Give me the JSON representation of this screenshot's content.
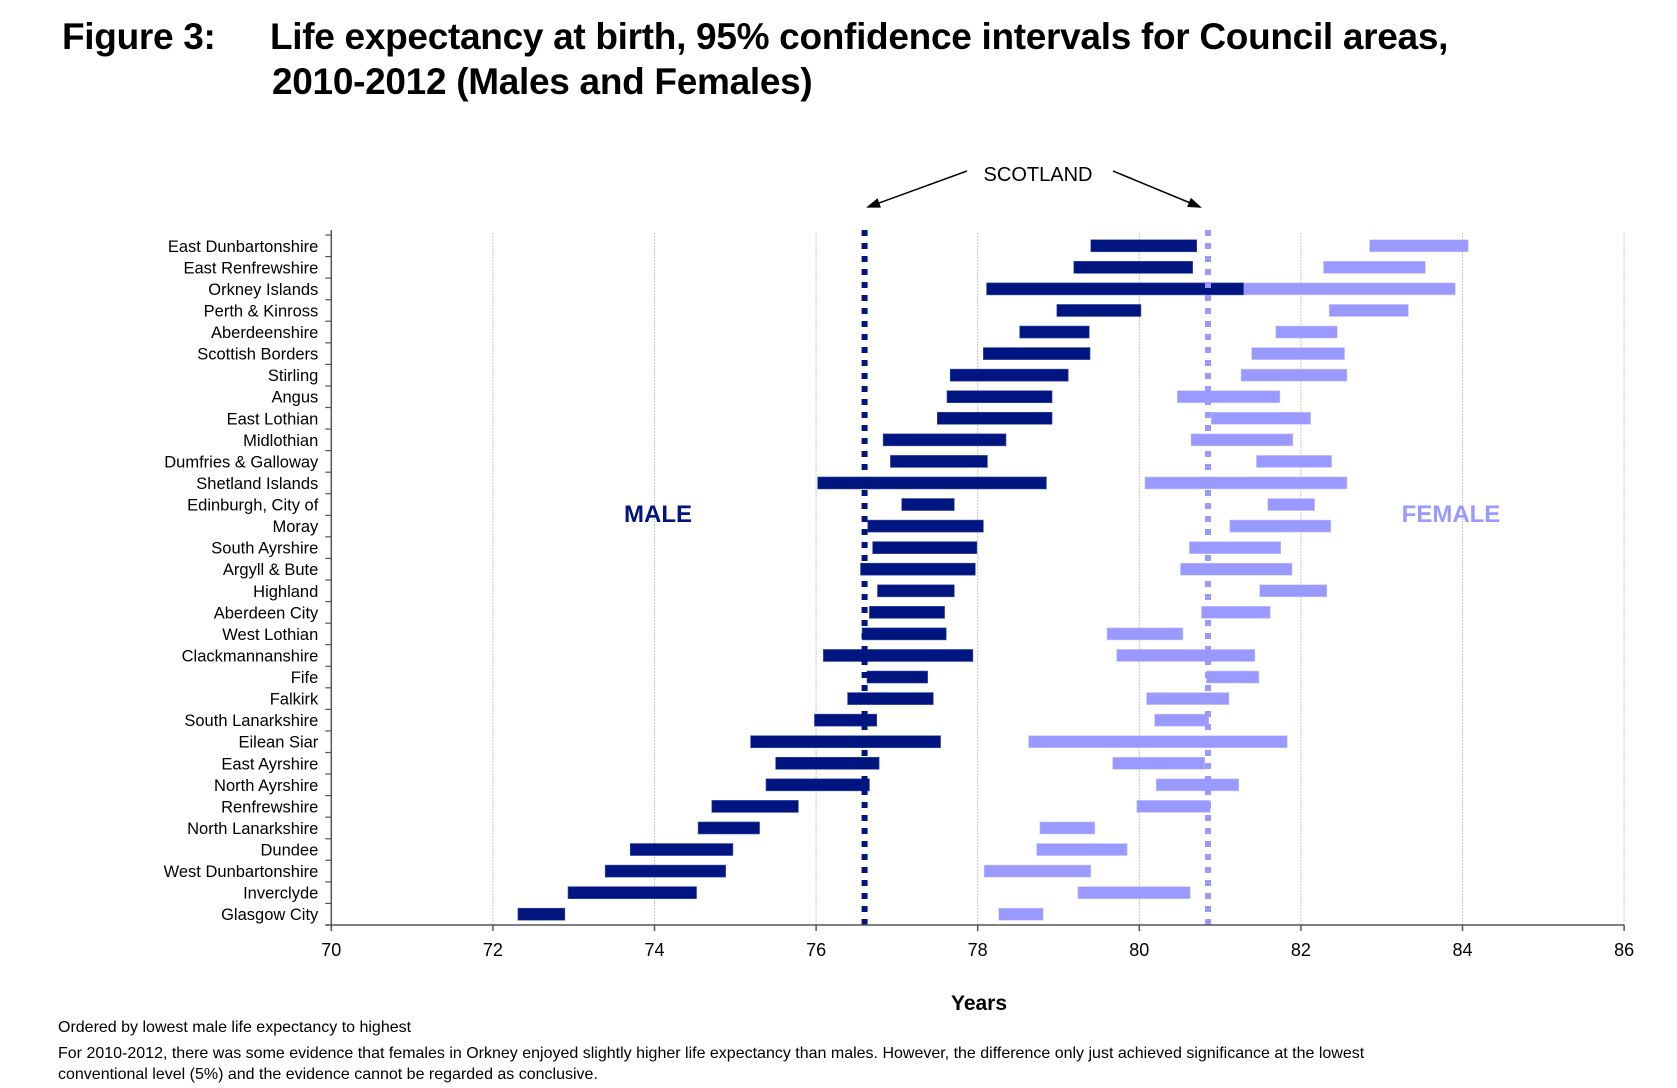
{
  "figure": {
    "prefix": "Figure 3:",
    "title_line1": "Life expectancy at birth, 95% confidence intervals for Council areas,",
    "title_line2": "2010-2012 (Males and Females)"
  },
  "notes": [
    "Ordered by lowest male life expectancy to highest",
    "For 2010-2012, there was some evidence that females in Orkney enjoyed slightly higher life expectancy than males. However, the difference only just achieved significance at the lowest",
    "conventional level (5%) and the evidence cannot be regarded as conclusive."
  ],
  "colors": {
    "male": "#001580",
    "female": "#9999ff",
    "grid": "#c8c8c8",
    "axis": "#555555"
  },
  "chart_data": {
    "type": "bar",
    "subtype": "floating-range-horizontal",
    "title": "Life expectancy at birth, 95% confidence intervals for Council areas, 2010-2012 (Males and Females)",
    "xlabel": "Years",
    "ylabel": "",
    "xlim": [
      70,
      86
    ],
    "xticks": [
      70,
      72,
      74,
      76,
      78,
      80,
      82,
      84,
      86
    ],
    "grid": "vertical",
    "series_labels": {
      "male": "MALE",
      "female": "FEMALE"
    },
    "reference": {
      "label": "SCOTLAND",
      "male": 76.6,
      "female": 80.85
    },
    "categories": [
      "East Dunbartonshire",
      "East Renfrewshire",
      "Orkney Islands",
      "Perth & Kinross",
      "Aberdeenshire",
      "Scottish Borders",
      "Stirling",
      "Angus",
      "East Lothian",
      "Midlothian",
      "Dumfries & Galloway",
      "Shetland Islands",
      "Edinburgh, City of",
      "Moray",
      "South Ayrshire",
      "Argyll & Bute",
      "Highland",
      "Aberdeen City",
      "West Lothian",
      "Clackmannanshire",
      "Fife",
      "Falkirk",
      "South Lanarkshire",
      "Eilean Siar",
      "East Ayrshire",
      "North Ayrshire",
      "Renfrewshire",
      "North Lanarkshire",
      "Dundee",
      "West Dunbartonshire",
      "Inverclyde",
      "Glasgow City"
    ],
    "series": [
      {
        "name": "Male",
        "ranges": [
          [
            79.4,
            80.71
          ],
          [
            79.19,
            80.66
          ],
          [
            78.11,
            81.29
          ],
          [
            78.98,
            80.02
          ],
          [
            78.52,
            79.38
          ],
          [
            78.07,
            79.39
          ],
          [
            77.66,
            79.12
          ],
          [
            77.62,
            78.92
          ],
          [
            77.5,
            78.92
          ],
          [
            76.83,
            78.35
          ],
          [
            76.92,
            78.12
          ],
          [
            76.02,
            78.85
          ],
          [
            77.06,
            77.71
          ],
          [
            76.64,
            78.07
          ],
          [
            76.7,
            77.99
          ],
          [
            76.55,
            77.97
          ],
          [
            76.76,
            77.71
          ],
          [
            76.66,
            77.59
          ],
          [
            76.57,
            77.61
          ],
          [
            76.09,
            77.94
          ],
          [
            76.63,
            77.38
          ],
          [
            76.39,
            77.45
          ],
          [
            75.98,
            76.75
          ],
          [
            75.19,
            77.54
          ],
          [
            75.5,
            76.78
          ],
          [
            75.38,
            76.66
          ],
          [
            74.71,
            75.78
          ],
          [
            74.54,
            75.3
          ],
          [
            73.7,
            74.97
          ],
          [
            73.39,
            74.88
          ],
          [
            72.93,
            74.52
          ],
          [
            72.31,
            72.89
          ]
        ]
      },
      {
        "name": "Female",
        "ranges": [
          [
            82.85,
            84.07
          ],
          [
            82.28,
            83.54
          ],
          [
            81.29,
            83.91
          ],
          [
            82.35,
            83.33
          ],
          [
            81.69,
            82.45
          ],
          [
            81.39,
            82.54
          ],
          [
            81.26,
            82.57
          ],
          [
            80.47,
            81.74
          ],
          [
            80.89,
            82.12
          ],
          [
            80.64,
            81.9
          ],
          [
            81.45,
            82.38
          ],
          [
            80.07,
            82.57
          ],
          [
            81.59,
            82.17
          ],
          [
            81.12,
            82.37
          ],
          [
            80.62,
            81.75
          ],
          [
            80.51,
            81.89
          ],
          [
            81.49,
            82.32
          ],
          [
            80.77,
            81.62
          ],
          [
            79.6,
            80.54
          ],
          [
            79.72,
            81.43
          ],
          [
            80.83,
            81.48
          ],
          [
            80.09,
            81.11
          ],
          [
            80.19,
            80.86
          ],
          [
            78.63,
            81.83
          ],
          [
            79.67,
            80.81
          ],
          [
            80.21,
            81.23
          ],
          [
            79.97,
            80.88
          ],
          [
            78.77,
            79.45
          ],
          [
            78.73,
            79.85
          ],
          [
            78.08,
            79.4
          ],
          [
            79.24,
            80.63
          ],
          [
            78.26,
            78.81
          ]
        ]
      }
    ]
  }
}
